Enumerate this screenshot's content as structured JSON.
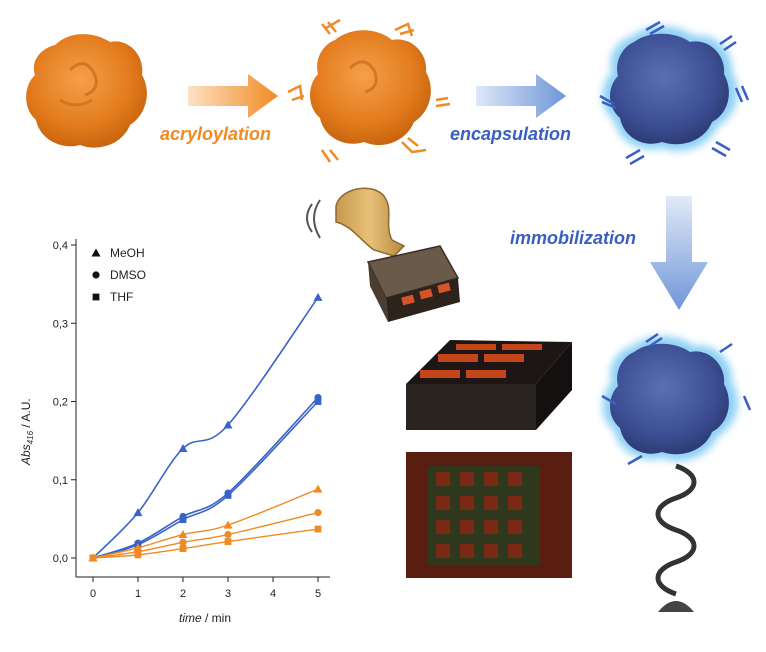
{
  "labels": {
    "step1": "acryloylation",
    "step2": "encapsulation",
    "step3": "immobilization"
  },
  "colors": {
    "orange": "#f08a24",
    "blue": "#3a5fc0",
    "glow": "#8fd0f5"
  },
  "icons": [
    "protein-orange-icon",
    "protein-acryloylated-icon",
    "protein-encapsulated-icon",
    "stamp-icon",
    "microarray-plate-icon",
    "fluorescence-image-icon",
    "tethered-protein-icon",
    "arrow-right-icon",
    "arrow-down-icon"
  ],
  "chart_data": {
    "type": "line",
    "xlabel_italic": "time",
    "xlabel_unit": " / min",
    "ylabel_main": "Abs",
    "ylabel_sub": "416",
    "ylabel_unit": " / A.U.",
    "x_ticks": [
      "0",
      "1",
      "2",
      "3",
      "4",
      "5"
    ],
    "y_ticks": [
      "0,0",
      "0,1",
      "0,2",
      "0,3",
      "0,4"
    ],
    "xlim": [
      0,
      5
    ],
    "ylim": [
      0,
      0.4
    ],
    "legend": [
      {
        "name": "MeOH",
        "marker": "triangle"
      },
      {
        "name": "DMSO",
        "marker": "circle"
      },
      {
        "name": "THF",
        "marker": "square"
      }
    ],
    "x": [
      0,
      1,
      2,
      3,
      5
    ],
    "series": [
      {
        "group": "blue",
        "marker": "triangle",
        "color": "#3a63c9",
        "values": [
          0,
          0.058,
          0.14,
          0.17,
          0.333
        ]
      },
      {
        "group": "blue",
        "marker": "circle",
        "color": "#3a63c9",
        "values": [
          0,
          0.019,
          0.053,
          0.083,
          0.205
        ]
      },
      {
        "group": "blue",
        "marker": "square",
        "color": "#3a63c9",
        "values": [
          0,
          0.017,
          0.049,
          0.08,
          0.2
        ]
      },
      {
        "group": "orange",
        "marker": "triangle",
        "color": "#f08a24",
        "values": [
          0,
          0.013,
          0.03,
          0.042,
          0.088
        ]
      },
      {
        "group": "orange",
        "marker": "circle",
        "color": "#f08a24",
        "values": [
          0,
          0.008,
          0.02,
          0.03,
          0.058
        ]
      },
      {
        "group": "orange",
        "marker": "square",
        "color": "#f08a24",
        "values": [
          0,
          0.004,
          0.012,
          0.021,
          0.037
        ]
      }
    ]
  }
}
